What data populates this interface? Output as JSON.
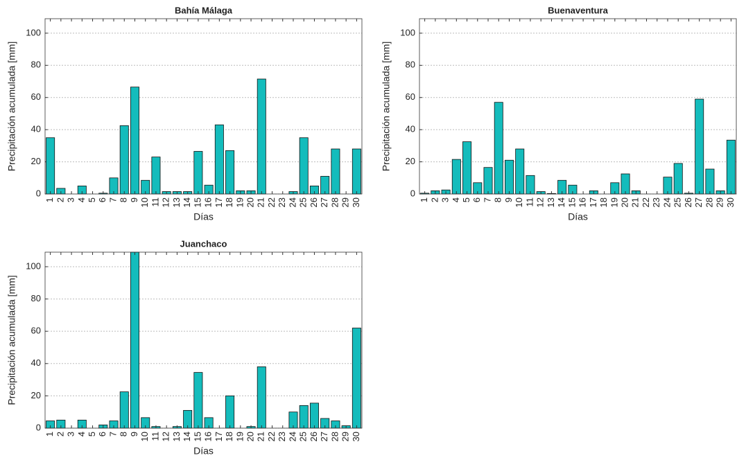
{
  "chart_data": [
    {
      "type": "bar",
      "title": "Bahía Málaga",
      "xlabel": "Días",
      "ylabel": "Precipitación acumulada [mm]",
      "categories": [
        "1",
        "2",
        "3",
        "4",
        "5",
        "6",
        "7",
        "8",
        "9",
        "10",
        "11",
        "12",
        "13",
        "14",
        "15",
        "16",
        "17",
        "18",
        "19",
        "20",
        "21",
        "22",
        "23",
        "24",
        "25",
        "26",
        "27",
        "28",
        "29",
        "30"
      ],
      "values": [
        35,
        3.5,
        0,
        5,
        0,
        0.5,
        10,
        42.5,
        66.5,
        8.5,
        23,
        1.5,
        1.5,
        1.5,
        26.5,
        5.5,
        43,
        27,
        2,
        2,
        71.5,
        0,
        0,
        1.5,
        35,
        5,
        11,
        28,
        0,
        28
      ],
      "color": "#14bcbc",
      "ylim": [
        0,
        109
      ],
      "yticks": [
        0,
        20,
        40,
        60,
        80,
        100
      ],
      "grid": true
    },
    {
      "type": "bar",
      "title": "Buenaventura",
      "xlabel": "Días",
      "ylabel": "Precipitación acumulada [mm]",
      "categories": [
        "1",
        "2",
        "3",
        "4",
        "5",
        "6",
        "7",
        "8",
        "9",
        "10",
        "11",
        "12",
        "13",
        "14",
        "15",
        "16",
        "17",
        "18",
        "19",
        "20",
        "21",
        "22",
        "23",
        "24",
        "25",
        "26",
        "27",
        "28",
        "29",
        "30"
      ],
      "values": [
        0.5,
        2,
        2.5,
        21.5,
        32.5,
        7,
        16.5,
        57,
        21,
        28,
        11.5,
        1.5,
        0.3,
        8.5,
        5.5,
        0,
        2,
        0,
        7,
        12.5,
        2,
        0,
        0,
        10.5,
        19,
        0.5,
        59,
        15.5,
        2,
        33.5
      ],
      "color": "#14bcbc",
      "ylim": [
        0,
        109
      ],
      "yticks": [
        0,
        20,
        40,
        60,
        80,
        100
      ],
      "grid": true
    },
    {
      "type": "bar",
      "title": "Juanchaco",
      "xlabel": "Días",
      "ylabel": "Precipitación acumulada [mm]",
      "categories": [
        "1",
        "2",
        "3",
        "4",
        "5",
        "6",
        "7",
        "8",
        "9",
        "10",
        "11",
        "12",
        "13",
        "14",
        "15",
        "16",
        "17",
        "18",
        "19",
        "20",
        "21",
        "22",
        "23",
        "24",
        "25",
        "26",
        "27",
        "28",
        "29",
        "30"
      ],
      "values": [
        4.5,
        5,
        0,
        5,
        0,
        2,
        4.5,
        22.5,
        109,
        6.5,
        1,
        0,
        1,
        11,
        34.5,
        6.5,
        0,
        20,
        0,
        1,
        38,
        0,
        0,
        10,
        14,
        15.5,
        6,
        4.5,
        1.5,
        62
      ],
      "color": "#14bcbc",
      "ylim": [
        0,
        109
      ],
      "yticks": [
        0,
        20,
        40,
        60,
        80,
        100
      ],
      "grid": true
    }
  ]
}
